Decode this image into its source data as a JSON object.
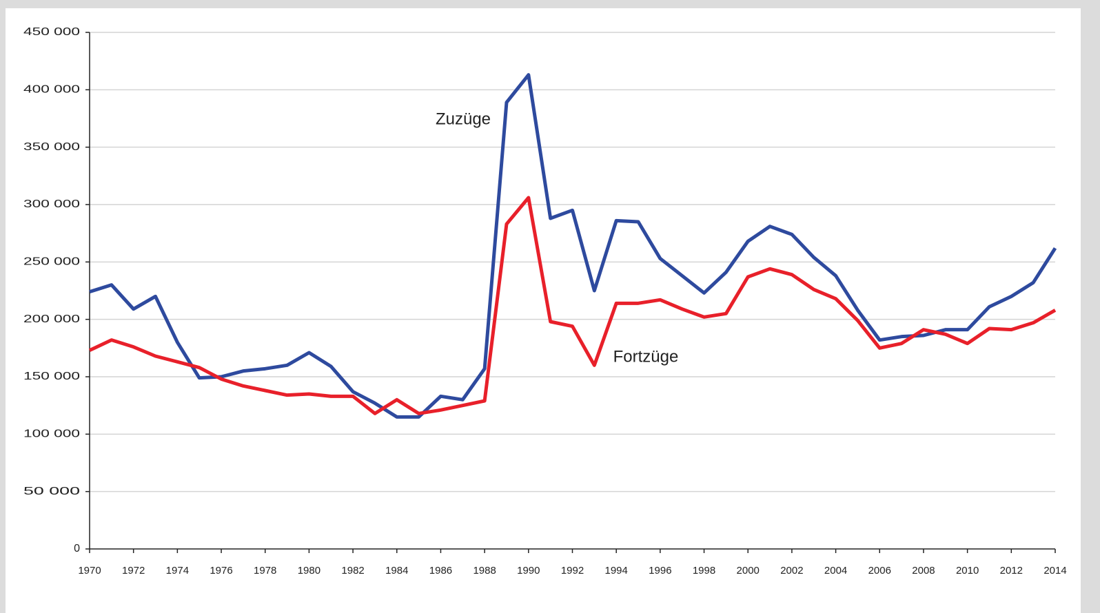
{
  "chart_data": {
    "type": "line",
    "x": [
      1970,
      1971,
      1972,
      1973,
      1974,
      1975,
      1976,
      1977,
      1978,
      1979,
      1980,
      1981,
      1982,
      1983,
      1984,
      1985,
      1986,
      1987,
      1988,
      1989,
      1990,
      1991,
      1992,
      1993,
      1994,
      1995,
      1996,
      1997,
      1998,
      1999,
      2000,
      2001,
      2002,
      2003,
      2004,
      2005,
      2006,
      2007,
      2008,
      2009,
      2010,
      2011,
      2012,
      2013,
      2014
    ],
    "series": [
      {
        "name": "Zuzüge",
        "color": "#2e4a9e",
        "values": [
          224000,
          230000,
          209000,
          220000,
          180000,
          149000,
          150000,
          155000,
          157000,
          160000,
          171000,
          159000,
          137000,
          127000,
          115000,
          115000,
          133000,
          130000,
          157000,
          389000,
          413000,
          288000,
          295000,
          225000,
          286000,
          285000,
          253000,
          238000,
          223000,
          241000,
          268000,
          281000,
          274000,
          254000,
          238000,
          208000,
          182000,
          185000,
          186000,
          191000,
          191000,
          211000,
          220000,
          232000,
          262000
        ]
      },
      {
        "name": "Fortzüge",
        "color": "#e8202a",
        "values": [
          173000,
          182000,
          176000,
          168000,
          163000,
          158000,
          148000,
          142000,
          138000,
          134000,
          135000,
          133000,
          133000,
          118000,
          130000,
          118000,
          121000,
          125000,
          129000,
          283000,
          306000,
          198000,
          194000,
          160000,
          214000,
          214000,
          217000,
          209000,
          202000,
          205000,
          237000,
          244000,
          239000,
          226000,
          218000,
          199000,
          175000,
          179000,
          191000,
          187000,
          179000,
          192000,
          191000,
          197000,
          208000
        ]
      }
    ],
    "xlim": [
      1970,
      2014
    ],
    "xticks": [
      1970,
      1972,
      1974,
      1976,
      1978,
      1980,
      1982,
      1984,
      1986,
      1988,
      1990,
      1992,
      1994,
      1996,
      1998,
      2000,
      2002,
      2004,
      2006,
      2008,
      2010,
      2012,
      2014
    ],
    "ylim": [
      0,
      450000
    ],
    "yticks": [
      0,
      {
        "value": 50000,
        "label": "50 000"
      },
      {
        "value": 100000,
        "label": "100 000"
      },
      {
        "value": 150000,
        "label": "150 000"
      },
      {
        "value": 200000,
        "label": "200 000"
      },
      {
        "value": 250000,
        "label": "250 000"
      },
      {
        "value": 300000,
        "label": "300 000"
      },
      {
        "value": 350000,
        "label": "350 000"
      },
      {
        "value": 400000,
        "label": "400 000"
      },
      {
        "value": 450000,
        "label": "450 000"
      }
    ],
    "grid": true
  }
}
